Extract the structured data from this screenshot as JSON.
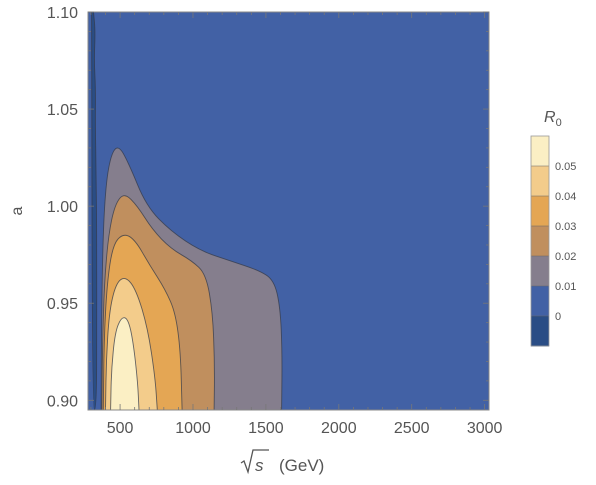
{
  "chart_data": {
    "type": "heatmap",
    "subtype": "filled-contour",
    "title": "",
    "xlabel": "(GeV)",
    "xlabel_symbol": "s",
    "ylabel": "a",
    "xlim": [
      280,
      3030
    ],
    "ylim": [
      0.895,
      1.1
    ],
    "xticks": [
      "500",
      "1000",
      "1500",
      "2000",
      "2500",
      "3000"
    ],
    "yticks": [
      "0.90",
      "0.95",
      "1.00",
      "1.05",
      "1.10"
    ],
    "grid": false,
    "legend": {
      "title": "R",
      "title_subscript": "0",
      "placement": "right",
      "levels": [
        "0.05",
        "0.04",
        "0.03",
        "0.02",
        "0.01",
        "0"
      ],
      "colors": [
        "#fbefc4",
        "#f3cc8b",
        "#e4a654",
        "#c08f5e",
        "#857e8d",
        "#4261a5",
        "#2a4d85"
      ]
    },
    "contours": [
      {
        "level": "0",
        "color": "#2a4d85",
        "points": [
          [
            318,
            1.1
          ],
          [
            330,
            1.09
          ],
          [
            322,
            1.075
          ],
          [
            332,
            1.06
          ],
          [
            330,
            1.04
          ],
          [
            335,
            1.02
          ],
          [
            338,
            1.0
          ],
          [
            340,
            0.97
          ],
          [
            340,
            0.94
          ],
          [
            338,
            0.895
          ],
          [
            310,
            0.895
          ],
          [
            305,
            1.1
          ]
        ]
      },
      {
        "level": "0.01",
        "color": "#857e8d",
        "points": [
          [
            370,
            0.895
          ],
          [
            372,
            0.93
          ],
          [
            378,
            0.97
          ],
          [
            395,
            1.005
          ],
          [
            430,
            1.025
          ],
          [
            485,
            1.032
          ],
          [
            560,
            1.022
          ],
          [
            680,
            1.0
          ],
          [
            850,
            0.987
          ],
          [
            1050,
            0.977
          ],
          [
            1250,
            0.972
          ],
          [
            1450,
            0.967
          ],
          [
            1555,
            0.962
          ],
          [
            1598,
            0.948
          ],
          [
            1612,
            0.925
          ],
          [
            1608,
            0.895
          ]
        ]
      },
      {
        "level": "0.02",
        "color": "#c08f5e",
        "points": [
          [
            375,
            0.895
          ],
          [
            380,
            0.93
          ],
          [
            392,
            0.96
          ],
          [
            420,
            0.985
          ],
          [
            465,
            1.001
          ],
          [
            530,
            1.007
          ],
          [
            620,
            1.0
          ],
          [
            720,
            0.988
          ],
          [
            850,
            0.978
          ],
          [
            990,
            0.972
          ],
          [
            1090,
            0.965
          ],
          [
            1135,
            0.945
          ],
          [
            1148,
            0.92
          ],
          [
            1145,
            0.895
          ]
        ]
      },
      {
        "level": "0.03",
        "color": "#e4a654",
        "points": [
          [
            385,
            0.895
          ],
          [
            390,
            0.93
          ],
          [
            410,
            0.96
          ],
          [
            450,
            0.98
          ],
          [
            520,
            0.986
          ],
          [
            600,
            0.983
          ],
          [
            700,
            0.97
          ],
          [
            810,
            0.957
          ],
          [
            880,
            0.945
          ],
          [
            915,
            0.925
          ],
          [
            925,
            0.895
          ]
        ]
      },
      {
        "level": "0.04",
        "color": "#f3cc8b",
        "points": [
          [
            400,
            0.895
          ],
          [
            405,
            0.92
          ],
          [
            425,
            0.945
          ],
          [
            470,
            0.96
          ],
          [
            535,
            0.964
          ],
          [
            610,
            0.957
          ],
          [
            690,
            0.937
          ],
          [
            740,
            0.912
          ],
          [
            755,
            0.895
          ]
        ]
      },
      {
        "level": "0.05",
        "color": "#fbefc4",
        "points": [
          [
            435,
            0.895
          ],
          [
            440,
            0.915
          ],
          [
            465,
            0.935
          ],
          [
            510,
            0.943
          ],
          [
            555,
            0.942
          ],
          [
            590,
            0.93
          ],
          [
            620,
            0.91
          ],
          [
            630,
            0.895
          ]
        ]
      }
    ]
  }
}
